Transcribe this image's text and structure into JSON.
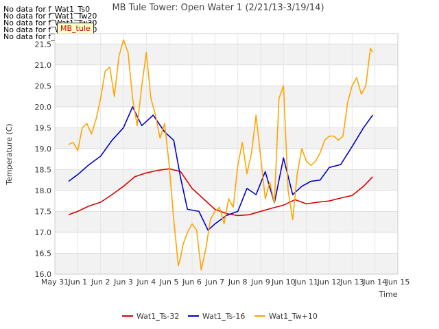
{
  "no_data_notes": [
    "No data for f_Wat1_Ts0",
    "No data for f_Wat1_Tw20",
    "No data for f_Wat1_Tw30",
    "No data for f_Wat1_Tw40",
    "No data for f_Wat1_Tw50"
  ],
  "badge": "MB_tule",
  "colors": {
    "Wat1_Ts-32": "#dd0000",
    "Wat1_Ts-16": "#0000cc",
    "Wat1_Tw+10": "#ffa500"
  },
  "chart_data": {
    "type": "line",
    "title": "MB Tule Tower: Open Water 1 (2/21/13-3/19/14)",
    "xlabel": "Time",
    "ylabel": "Temperature (C)",
    "xlim": [
      0,
      15
    ],
    "ylim": [
      16.0,
      21.75
    ],
    "x_ticks": [
      0,
      1,
      2,
      3,
      4,
      5,
      6,
      7,
      8,
      9,
      10,
      11,
      12,
      13,
      14,
      15
    ],
    "x_tick_labels": [
      "May 31",
      "Jun 1",
      "Jun 2",
      "Jun 3",
      "Jun 4",
      "Jun 5",
      "Jun 6",
      "Jun 7",
      "Jun 8",
      "Jun 9",
      "Jun 10",
      "Jun 11",
      "Jun 12",
      "Jun 13",
      "Jun 14",
      "Jun 15"
    ],
    "y_ticks": [
      16.0,
      16.5,
      17.0,
      17.5,
      18.0,
      18.5,
      19.0,
      19.5,
      20.0,
      20.5,
      21.0,
      21.5
    ],
    "y_tick_labels": [
      "16.0",
      "16.5",
      "17.0",
      "17.5",
      "18.0",
      "18.5",
      "19.0",
      "19.5",
      "20.0",
      "20.5",
      "21.0",
      "21.5"
    ],
    "grid": true,
    "legend": "bottom-center",
    "series": [
      {
        "name": "Wat1_Ts-32",
        "x": [
          0.6,
          1.0,
          1.5,
          2.0,
          2.5,
          3.0,
          3.5,
          4.0,
          4.5,
          5.0,
          5.5,
          6.0,
          6.5,
          7.0,
          7.5,
          8.0,
          8.5,
          9.0,
          9.5,
          10.0,
          10.5,
          11.0,
          11.5,
          12.0,
          12.5,
          13.0,
          13.5,
          13.9
        ],
        "y": [
          17.42,
          17.5,
          17.63,
          17.72,
          17.9,
          18.1,
          18.33,
          18.42,
          18.48,
          18.52,
          18.45,
          18.05,
          17.8,
          17.55,
          17.45,
          17.4,
          17.42,
          17.5,
          17.58,
          17.65,
          17.78,
          17.68,
          17.72,
          17.75,
          17.82,
          17.88,
          18.1,
          18.33
        ]
      },
      {
        "name": "Wat1_Ts-16",
        "x": [
          0.6,
          1.0,
          1.5,
          2.0,
          2.5,
          3.0,
          3.4,
          3.8,
          4.3,
          4.8,
          5.2,
          5.5,
          5.8,
          6.3,
          6.7,
          7.0,
          7.5,
          8.0,
          8.4,
          8.8,
          9.2,
          9.6,
          10.0,
          10.4,
          10.8,
          11.2,
          11.6,
          12.0,
          12.5,
          13.0,
          13.5,
          13.9
        ],
        "y": [
          18.22,
          18.38,
          18.62,
          18.82,
          19.2,
          19.5,
          20.0,
          19.55,
          19.8,
          19.4,
          19.2,
          18.3,
          17.55,
          17.5,
          17.05,
          17.2,
          17.4,
          17.5,
          18.05,
          17.9,
          18.45,
          17.7,
          18.78,
          17.9,
          18.1,
          18.22,
          18.25,
          18.55,
          18.62,
          19.05,
          19.5,
          19.8
        ]
      },
      {
        "name": "Wat1_Tw+10",
        "x": [
          0.6,
          0.8,
          1.0,
          1.2,
          1.4,
          1.6,
          1.8,
          2.0,
          2.2,
          2.4,
          2.6,
          2.8,
          3.0,
          3.2,
          3.4,
          3.6,
          3.8,
          4.0,
          4.2,
          4.4,
          4.6,
          4.8,
          5.0,
          5.2,
          5.4,
          5.5,
          5.6,
          5.8,
          6.0,
          6.2,
          6.4,
          6.6,
          6.8,
          7.0,
          7.2,
          7.4,
          7.6,
          7.8,
          8.0,
          8.2,
          8.4,
          8.6,
          8.8,
          9.0,
          9.2,
          9.4,
          9.6,
          9.8,
          10.0,
          10.2,
          10.4,
          10.6,
          10.8,
          11.0,
          11.2,
          11.4,
          11.6,
          11.8,
          12.0,
          12.2,
          12.4,
          12.6,
          12.8,
          13.0,
          13.2,
          13.4,
          13.6,
          13.8,
          13.9
        ],
        "y": [
          19.1,
          19.15,
          18.95,
          19.5,
          19.6,
          19.35,
          19.7,
          20.2,
          20.85,
          20.95,
          20.25,
          21.2,
          21.6,
          21.3,
          20.2,
          19.55,
          20.5,
          21.3,
          20.2,
          19.8,
          19.25,
          19.6,
          18.6,
          17.3,
          16.2,
          16.4,
          16.7,
          17.0,
          17.2,
          17.05,
          16.1,
          16.6,
          17.3,
          17.5,
          17.6,
          17.2,
          17.8,
          17.6,
          18.6,
          19.15,
          18.4,
          18.9,
          19.8,
          18.8,
          17.8,
          18.2,
          17.7,
          20.2,
          20.5,
          18.0,
          17.3,
          18.4,
          19.0,
          18.7,
          18.6,
          18.7,
          18.9,
          19.2,
          19.3,
          19.3,
          19.2,
          19.3,
          20.1,
          20.5,
          20.7,
          20.3,
          20.5,
          21.4,
          21.3
        ]
      }
    ]
  }
}
